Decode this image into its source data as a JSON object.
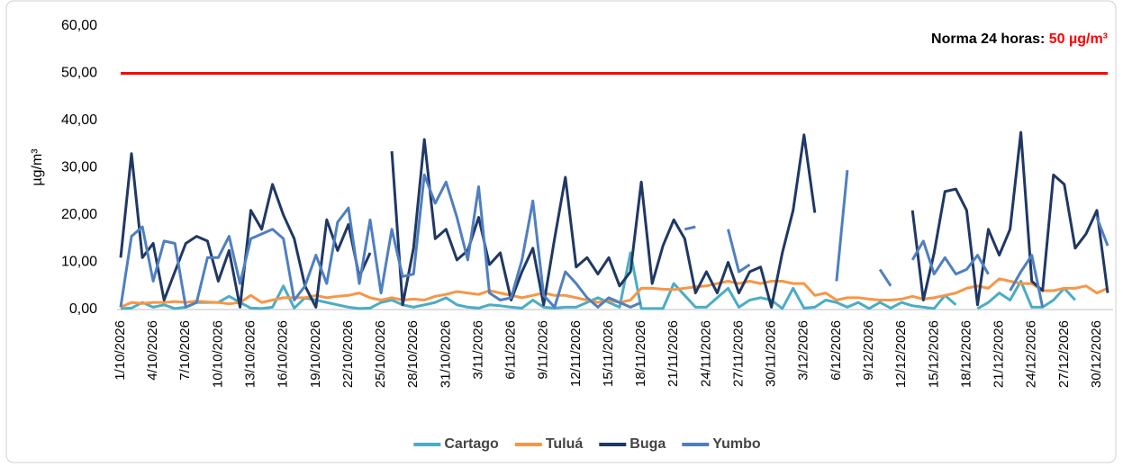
{
  "chart_data": {
    "type": "line",
    "y_label": "µg/m³",
    "annotation": "Norma 24 horas:",
    "annotation_value": "50 µg/m³",
    "reference_line": {
      "value": 50,
      "color": "#ff0000"
    },
    "ylim": [
      0,
      60
    ],
    "yticks": [
      {
        "value": 0,
        "label": "0,00"
      },
      {
        "value": 10,
        "label": "10,00"
      },
      {
        "value": 20,
        "label": "20,00"
      },
      {
        "value": 30,
        "label": "30,00"
      },
      {
        "value": 40,
        "label": "40,00"
      },
      {
        "value": 50,
        "label": "50,00"
      },
      {
        "value": 60,
        "label": "60,00"
      }
    ],
    "grid": false,
    "legend": "bottom",
    "categories": [
      "1/10/2026",
      null,
      null,
      "4/10/2026",
      null,
      null,
      "7/10/2026",
      null,
      null,
      "10/10/2026",
      null,
      null,
      "13/10/2026",
      null,
      null,
      "16/10/2026",
      null,
      null,
      "19/10/2026",
      null,
      null,
      "22/10/2026",
      null,
      null,
      "25/10/2026",
      null,
      null,
      "28/10/2026",
      null,
      null,
      "31/10/2026",
      null,
      null,
      "3/11/2026",
      null,
      null,
      "6/11/2026",
      null,
      null,
      "9/11/2026",
      null,
      null,
      "12/11/2026",
      null,
      null,
      "15/11/2026",
      null,
      null,
      "18/11/2026",
      null,
      null,
      "21/11/2026",
      null,
      null,
      "24/11/2026",
      null,
      null,
      "27/11/2026",
      null,
      null,
      "30/11/2026",
      null,
      null,
      "3/12/2026",
      null,
      null,
      "6/12/2026",
      null,
      null,
      "9/12/2026",
      null,
      null,
      "12/12/2026",
      null,
      null,
      "15/12/2026",
      null,
      null,
      "18/12/2026",
      null,
      null,
      "21/12/2026",
      null,
      null,
      "24/12/2026",
      null,
      null,
      "27/12/2026",
      null,
      null,
      "30/12/2026",
      null
    ],
    "series": [
      {
        "name": "Cartago",
        "color": "#4bacc6",
        "values": [
          0.2,
          0.3,
          1.5,
          0.5,
          1,
          0.2,
          0.5,
          1.5,
          1.5,
          1.5,
          2.8,
          1.5,
          0.3,
          0.2,
          0.5,
          5,
          0.3,
          2.5,
          2,
          1.5,
          1,
          0.5,
          0.2,
          0.3,
          1.5,
          2,
          1,
          0.5,
          1,
          1.5,
          2.5,
          1,
          0.5,
          0.3,
          1,
          0.8,
          0.5,
          0.3,
          2,
          0.5,
          0.3,
          0.5,
          0.5,
          1.5,
          2.5,
          1.5,
          0.5,
          12,
          0.2,
          0.2,
          0.2,
          5.5,
          3,
          0.5,
          0.5,
          2.5,
          4.5,
          0.5,
          2,
          2.5,
          2,
          0.2,
          4.5,
          0.3,
          0.5,
          2,
          1.5,
          0.5,
          1.5,
          0.2,
          1.5,
          0.3,
          1.5,
          0.8,
          0.5,
          0.2,
          3,
          1,
          null,
          0.2,
          1.5,
          3.5,
          2,
          6,
          0.5,
          0.5,
          2,
          4.5,
          2,
          null,
          null,
          null
        ]
      },
      {
        "name": "Tuluá",
        "color": "#f79646",
        "values": [
          0.5,
          1.5,
          1.3,
          1.5,
          1.5,
          1.7,
          1.5,
          1.8,
          1.6,
          1.5,
          1.2,
          1.5,
          3,
          1.5,
          2,
          2.5,
          2.5,
          2.5,
          3,
          2.5,
          2.8,
          3,
          3.5,
          2.5,
          2,
          2.5,
          2,
          2.2,
          2,
          2.8,
          3.2,
          3.8,
          3.5,
          3.2,
          4,
          3.5,
          3,
          2.5,
          3,
          3.5,
          3,
          3,
          2.5,
          2,
          1.5,
          2,
          1.5,
          2,
          4.5,
          4.5,
          4.3,
          4.2,
          4.5,
          4.8,
          5,
          5.5,
          6,
          5.5,
          6,
          5.5,
          6,
          6,
          5.5,
          5.5,
          3,
          3.5,
          2,
          2.5,
          2.5,
          2.2,
          2,
          2,
          2.2,
          2.8,
          2.2,
          2.5,
          3,
          3.5,
          4.5,
          5,
          4.5,
          6.5,
          6,
          5.5,
          5.5,
          4,
          4,
          4.5,
          4.5,
          5,
          3.5,
          4.5
        ]
      },
      {
        "name": "Buga",
        "color": "#1f3864",
        "values": [
          11,
          33,
          11,
          14,
          2,
          8,
          14,
          15.5,
          14.5,
          6,
          12.5,
          0.5,
          21,
          17,
          26.5,
          20,
          15,
          5,
          0.5,
          19,
          12.5,
          18,
          7,
          12,
          null,
          33.5,
          1,
          13,
          36,
          15,
          17,
          10.5,
          12.5,
          19.5,
          9.5,
          12,
          2,
          8,
          13,
          1,
          15,
          28,
          9,
          11,
          7.5,
          11,
          5,
          8,
          27,
          5.5,
          13.5,
          19,
          15,
          3.5,
          8,
          3.5,
          10,
          3.5,
          8,
          9,
          0.5,
          12,
          21,
          37,
          20.5,
          null,
          null,
          null,
          null,
          null,
          null,
          null,
          null,
          21,
          2,
          12,
          25,
          25.5,
          21,
          1,
          17,
          11.5,
          17,
          37.5,
          6,
          4,
          28.5,
          26.5,
          13,
          16,
          21,
          3.5
        ]
      },
      {
        "name": "Yumbo",
        "color": "#4f7fc0",
        "values": [
          0.5,
          15.5,
          17.5,
          6,
          14.5,
          14,
          0.5,
          1.5,
          11,
          11,
          15.5,
          5.5,
          15,
          16,
          17,
          15,
          2,
          5,
          11.5,
          5.5,
          18.5,
          21.5,
          5.5,
          19,
          3.5,
          17,
          7,
          7.5,
          28.5,
          22.5,
          27,
          19.5,
          10.5,
          26,
          3.5,
          2,
          2.5,
          10.5,
          23,
          3,
          0.5,
          8,
          5.5,
          2.5,
          0.5,
          2.5,
          1.5,
          0.5,
          1.5,
          null,
          null,
          null,
          17,
          17.5,
          null,
          null,
          17,
          8,
          9.5,
          null,
          null,
          null,
          null,
          null,
          null,
          null,
          6,
          29.5,
          null,
          null,
          8.5,
          5,
          null,
          10.5,
          14.5,
          7.5,
          11,
          7.5,
          8.5,
          11.5,
          7.5,
          null,
          4,
          8,
          11.5,
          0.5,
          null,
          null,
          null,
          null,
          19.5,
          13.5
        ]
      }
    ]
  }
}
